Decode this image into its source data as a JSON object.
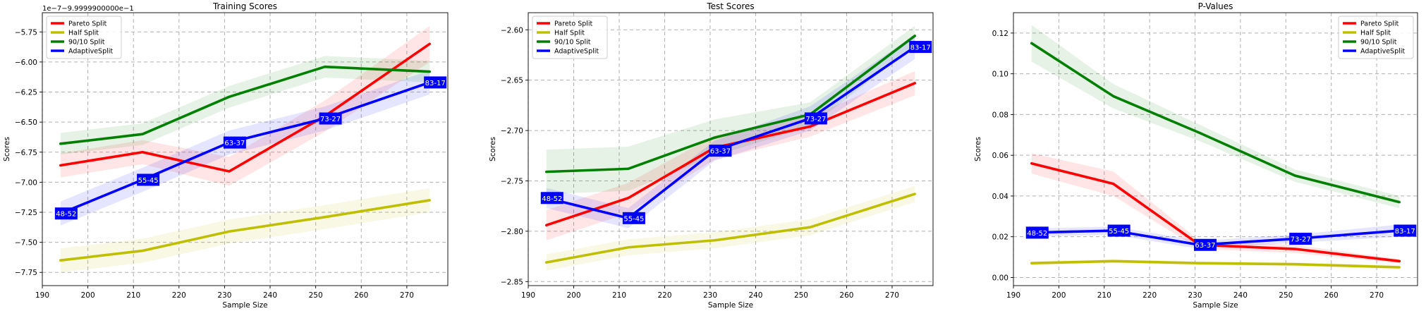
{
  "chart_data": [
    {
      "type": "line",
      "title": "Training Scores",
      "xlabel": "Sample Size",
      "ylabel": "Scores",
      "offset_text": "1e−7−9.9999900000e−1",
      "xlim": [
        190,
        279
      ],
      "ylim": [
        -7.86,
        -5.59
      ],
      "xticks": [
        190,
        200,
        210,
        220,
        230,
        240,
        250,
        260,
        270
      ],
      "yticks": [
        -7.75,
        -7.5,
        -7.25,
        -7.0,
        -6.75,
        -6.5,
        -6.25,
        -6.0,
        -5.75
      ],
      "ytick_labels": [
        "−7.75",
        "−7.50",
        "−7.25",
        "−7.00",
        "−6.75",
        "−6.50",
        "−6.25",
        "−6.00",
        "−5.75"
      ],
      "x": [
        194,
        212,
        231,
        252,
        275
      ],
      "legend_position": "top-left",
      "series": [
        {
          "name": "Pareto Split",
          "color": "#ff0000",
          "values": [
            -6.86,
            -6.75,
            -6.91,
            -6.45,
            -5.85
          ],
          "band": [
            0.1,
            0.1,
            0.12,
            0.13,
            0.15
          ]
        },
        {
          "name": "Half Split",
          "color": "#bfbf00",
          "values": [
            -7.65,
            -7.57,
            -7.41,
            -7.29,
            -7.15
          ],
          "band": [
            0.1,
            0.1,
            0.1,
            0.1,
            0.1
          ]
        },
        {
          "name": "90/10 Split",
          "color": "#008000",
          "values": [
            -6.68,
            -6.6,
            -6.29,
            -6.04,
            -6.08
          ],
          "band": [
            0.09,
            0.09,
            0.09,
            0.09,
            0.09
          ]
        },
        {
          "name": "AdaptiveSplit",
          "color": "#0000ff",
          "values": [
            -7.26,
            -6.98,
            -6.67,
            -6.47,
            -6.17
          ],
          "band": [
            0.1,
            0.1,
            0.1,
            0.1,
            0.1
          ],
          "labels": [
            "48-52",
            "55-45",
            "63-37",
            "73-27",
            "83-17"
          ]
        }
      ]
    },
    {
      "type": "line",
      "title": "Test Scores",
      "xlabel": "Sample Size",
      "ylabel": "Scores",
      "xlim": [
        190,
        279
      ],
      "ylim": [
        -2.854,
        -2.583
      ],
      "xticks": [
        190,
        200,
        210,
        220,
        230,
        240,
        250,
        260,
        270
      ],
      "yticks": [
        -2.85,
        -2.8,
        -2.75,
        -2.7,
        -2.65,
        -2.6
      ],
      "ytick_labels": [
        "−2.85",
        "−2.80",
        "−2.75",
        "−2.70",
        "−2.65",
        "−2.60"
      ],
      "x": [
        194,
        212,
        231,
        252,
        275
      ],
      "legend_position": "top-left",
      "series": [
        {
          "name": "Pareto Split",
          "color": "#ff0000",
          "values": [
            -2.794,
            -2.767,
            -2.717,
            -2.696,
            -2.653
          ],
          "band": [
            0.015,
            0.015,
            0.012,
            0.01,
            0.012
          ]
        },
        {
          "name": "Half Split",
          "color": "#bfbf00",
          "values": [
            -2.831,
            -2.816,
            -2.809,
            -2.796,
            -2.763
          ],
          "band": [
            0.008,
            0.008,
            0.008,
            0.008,
            0.008
          ]
        },
        {
          "name": "90/10 Split",
          "color": "#008000",
          "values": [
            -2.741,
            -2.738,
            -2.707,
            -2.684,
            -2.606
          ],
          "band": [
            0.022,
            0.022,
            0.018,
            0.012,
            0.01
          ]
        },
        {
          "name": "AdaptiveSplit",
          "color": "#0000ff",
          "values": [
            -2.767,
            -2.787,
            -2.72,
            -2.688,
            -2.617
          ],
          "band": [
            0.01,
            0.01,
            0.01,
            0.012,
            0.012
          ],
          "labels": [
            "48-52",
            "55-45",
            "63-37",
            "73-27",
            "83-17"
          ]
        }
      ]
    },
    {
      "type": "line",
      "title": "P-Values",
      "xlabel": "Sample Size",
      "ylabel": "Scores",
      "xlim": [
        190,
        279
      ],
      "ylim": [
        -0.004,
        0.13
      ],
      "xticks": [
        190,
        200,
        210,
        220,
        230,
        240,
        250,
        260,
        270
      ],
      "yticks": [
        0.0,
        0.02,
        0.04,
        0.06,
        0.08,
        0.1,
        0.12
      ],
      "ytick_labels": [
        "0.00",
        "0.02",
        "0.04",
        "0.06",
        "0.08",
        "0.10",
        "0.12"
      ],
      "x": [
        194,
        212,
        231,
        252,
        275
      ],
      "legend_position": "top-right",
      "series": [
        {
          "name": "Pareto Split",
          "color": "#ff0000",
          "values": [
            0.056,
            0.046,
            0.016,
            0.014,
            0.008
          ],
          "band": [
            0.005,
            0.006,
            0.002,
            0.002,
            0.001
          ]
        },
        {
          "name": "Half Split",
          "color": "#bfbf00",
          "values": [
            0.007,
            0.008,
            0.007,
            0.0065,
            0.005
          ],
          "band": [
            0.001,
            0.001,
            0.001,
            0.001,
            0.001
          ]
        },
        {
          "name": "90/10 Split",
          "color": "#008000",
          "values": [
            0.115,
            0.089,
            0.071,
            0.05,
            0.037
          ],
          "band": [
            0.009,
            0.006,
            0.004,
            0.003,
            0.003
          ]
        },
        {
          "name": "AdaptiveSplit",
          "color": "#0000ff",
          "values": [
            0.022,
            0.023,
            0.016,
            0.019,
            0.023
          ],
          "band": [
            0.002,
            0.002,
            0.002,
            0.002,
            0.003
          ],
          "labels": [
            "48-52",
            "55-45",
            "63-37",
            "73-27",
            "83-17"
          ]
        }
      ]
    }
  ]
}
